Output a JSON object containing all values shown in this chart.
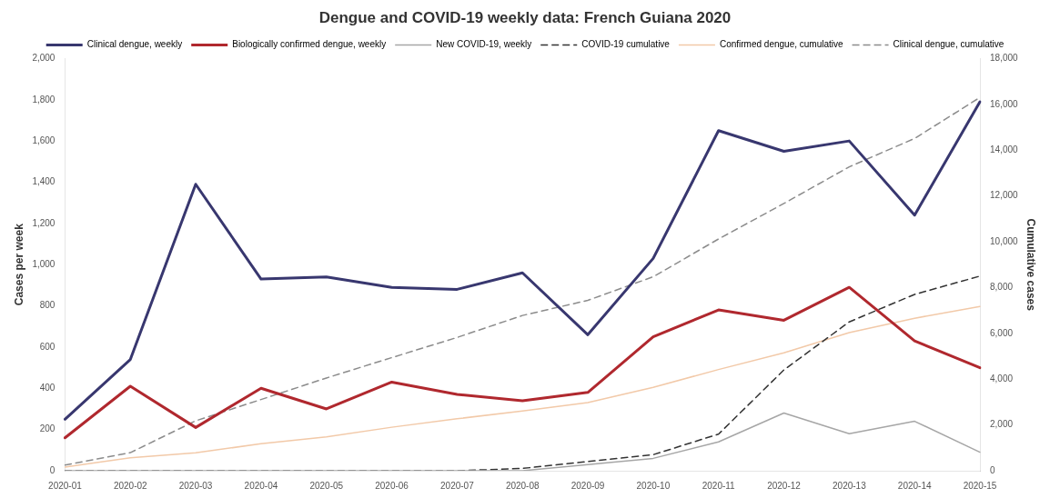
{
  "chart_data": {
    "type": "line",
    "title": "Dengue and COVID-19 weekly data: French Guiana 2020",
    "categories": [
      "2020-01",
      "2020-02",
      "2020-03",
      "2020-04",
      "2020-05",
      "2020-06",
      "2020-07",
      "2020-08",
      "2020-09",
      "2020-10",
      "2020-11",
      "2020-12",
      "2020-13",
      "2020-14",
      "2020-15"
    ],
    "ylabel": "Cases per week",
    "y2label": "Cumulative cases",
    "ylim": [
      0,
      2000
    ],
    "yticks": [
      0,
      200,
      400,
      600,
      800,
      {
        "value": 1000,
        "label": "1,000"
      },
      {
        "value": 1200,
        "label": "1,200"
      },
      {
        "value": 1400,
        "label": "1,400"
      },
      {
        "value": 1600,
        "label": "1,600"
      },
      {
        "value": 1800,
        "label": "1,800"
      },
      {
        "value": 2000,
        "label": "2,000"
      }
    ],
    "y2lim": [
      0,
      18000
    ],
    "y2ticks": [
      0,
      {
        "value": 2000,
        "label": "2,000"
      },
      {
        "value": 4000,
        "label": "4,000"
      },
      {
        "value": 6000,
        "label": "6,000"
      },
      {
        "value": 8000,
        "label": "8,000"
      },
      {
        "value": 10000,
        "label": "10,000"
      },
      {
        "value": 12000,
        "label": "12,000"
      },
      {
        "value": 14000,
        "label": "14,000"
      },
      {
        "value": 16000,
        "label": "16,000"
      },
      {
        "value": 18000,
        "label": "18,000"
      }
    ],
    "grid": false,
    "legend": "top",
    "marker": "none",
    "series": [
      {
        "name": "Clinical dengue, weekly",
        "color": "#38376f",
        "line_style": "solid",
        "values": [
          250,
          540,
          1390,
          930,
          940,
          890,
          880,
          960,
          660,
          1030,
          1650,
          1550,
          1600,
          1240,
          1790
        ]
      },
      {
        "name": "Biologically confirmed dengue, weekly",
        "color": "#b0282e",
        "line_style": "solid",
        "values": [
          160,
          410,
          210,
          400,
          300,
          430,
          370,
          340,
          380,
          650,
          780,
          730,
          890,
          630,
          500
        ]
      },
      {
        "name": "New COVID-19, weekly",
        "color": "#a6a6a6",
        "line_style": "solid",
        "values": [
          0,
          0,
          0,
          0,
          0,
          0,
          0,
          0,
          30,
          60,
          140,
          280,
          180,
          240,
          90
        ]
      },
      {
        "name": "COVID-19 cumulative",
        "color": "#333333",
        "line_style": "dashed",
        "axis": "y2",
        "values": [
          0,
          0,
          0,
          0,
          0,
          0,
          0,
          100,
          400,
          700,
          1600,
          4400,
          6500,
          7700,
          8500
        ]
      },
      {
        "name": "Confirmed dengue, cumulative",
        "color": "#f2c9a8",
        "line_style": "solid",
        "axis": "y2",
        "values": [
          160,
          570,
          780,
          1180,
          1480,
          1900,
          2270,
          2610,
          2980,
          3640,
          4420,
          5150,
          6030,
          6660,
          7170
        ]
      },
      {
        "name": "Clinical dengue, cumulative",
        "color": "#8c8c8c",
        "line_style": "dashed",
        "axis": "y2",
        "values": [
          250,
          790,
          2180,
          3110,
          4050,
          4940,
          5820,
          6780,
          7440,
          8470,
          10120,
          11670,
          13270,
          14510,
          16300
        ]
      }
    ]
  }
}
